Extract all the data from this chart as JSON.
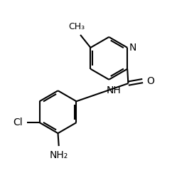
{
  "background_color": "#ffffff",
  "line_color": "#000000",
  "line_width": 1.5,
  "figsize": [
    2.42,
    2.57
  ],
  "dpi": 100,
  "labels": {
    "N_pyridine": {
      "text": "N",
      "fontsize": 10
    },
    "CH3": {
      "text": "CH₃",
      "fontsize": 9
    },
    "O": {
      "text": "O",
      "fontsize": 10
    },
    "NH": {
      "text": "NH",
      "fontsize": 10
    },
    "Cl": {
      "text": "Cl",
      "fontsize": 10
    },
    "NH2": {
      "text": "NH₂",
      "fontsize": 10
    }
  }
}
